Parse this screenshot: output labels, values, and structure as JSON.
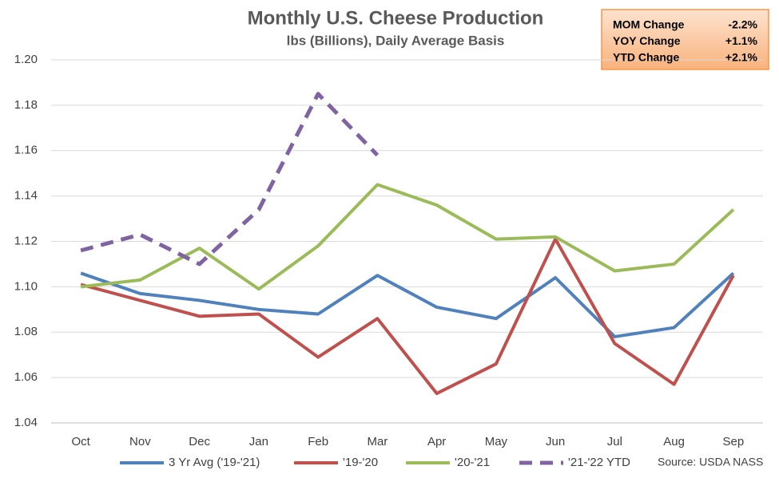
{
  "chart_data": {
    "type": "line",
    "title": "Monthly U.S. Cheese Production",
    "subtitle": "lbs (Billions), Daily Average Basis",
    "categories": [
      "Oct",
      "Nov",
      "Dec",
      "Jan",
      "Feb",
      "Mar",
      "Apr",
      "May",
      "Jun",
      "Jul",
      "Aug",
      "Sep"
    ],
    "series": [
      {
        "name": "3 Yr Avg ('19-'21)",
        "color": "#4f81bd",
        "style": "solid",
        "values": [
          1.106,
          1.097,
          1.094,
          1.09,
          1.088,
          1.105,
          1.091,
          1.086,
          1.104,
          1.078,
          1.082,
          1.106
        ]
      },
      {
        "name": "'19-'20",
        "color": "#c0504d",
        "style": "solid",
        "values": [
          1.101,
          1.094,
          1.087,
          1.088,
          1.069,
          1.086,
          1.053,
          1.066,
          1.121,
          1.075,
          1.057,
          1.105
        ]
      },
      {
        "name": "'20-'21",
        "color": "#9bbb59",
        "style": "solid",
        "values": [
          1.1,
          1.103,
          1.117,
          1.099,
          1.118,
          1.145,
          1.136,
          1.121,
          1.122,
          1.107,
          1.11,
          1.134
        ]
      },
      {
        "name": "'21-'22 YTD",
        "color": "#8064a2",
        "style": "dashed",
        "values": [
          1.116,
          1.123,
          1.11,
          1.134,
          1.185,
          1.158,
          null,
          null,
          null,
          null,
          null,
          null
        ]
      }
    ],
    "ylim": [
      1.04,
      1.2
    ],
    "yticks": [
      1.04,
      1.06,
      1.08,
      {
        "value": 1.1,
        "label": "1.10"
      },
      1.12,
      1.14,
      1.16,
      1.18,
      {
        "value": 1.2,
        "label": "1.20"
      }
    ],
    "grid": true,
    "legend": "bottom",
    "annotations": [
      {
        "label": "MOM Change",
        "value": "-2.2%"
      },
      {
        "label": "YOY Change",
        "value": "+1.1%"
      },
      {
        "label": "YTD Change",
        "value": "+2.1%"
      }
    ],
    "source": "Source: USDA NASS"
  }
}
